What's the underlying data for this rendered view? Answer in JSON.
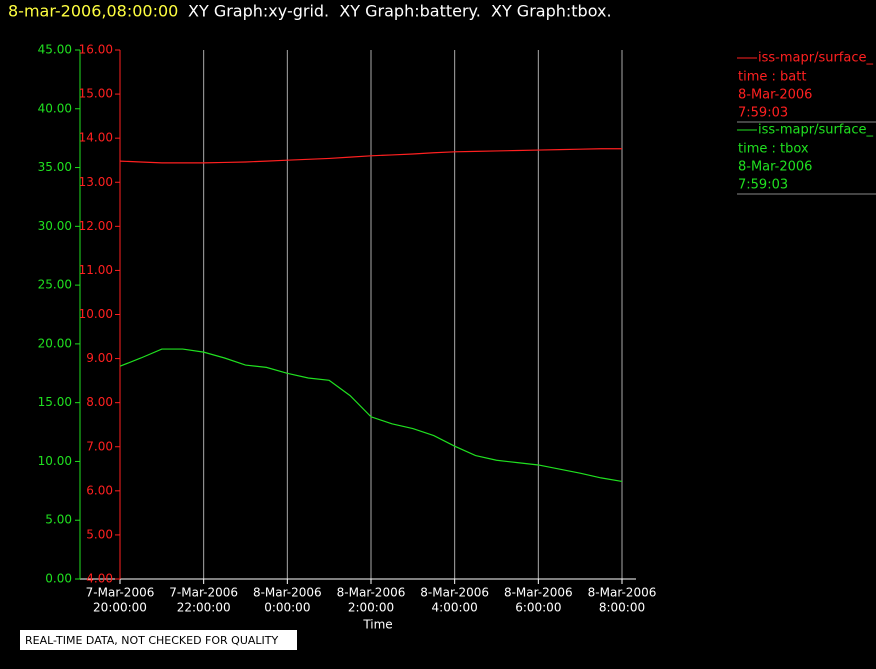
{
  "header": {
    "timestamp": "8-mar-2006,08:00:00",
    "graphs": "XY Graph:xy-grid.  XY Graph:battery.  XY Graph:tbox."
  },
  "footer_note": "REAL-TIME DATA, NOT CHECKED FOR QUALITY",
  "chart_data": {
    "type": "line",
    "xlabel": "Time",
    "grid": true,
    "x": [
      "2006-03-07T20:00",
      "2006-03-07T20:30",
      "2006-03-07T21:00",
      "2006-03-07T21:30",
      "2006-03-07T22:00",
      "2006-03-07T22:30",
      "2006-03-07T23:00",
      "2006-03-07T23:30",
      "2006-03-08T00:00",
      "2006-03-08T00:30",
      "2006-03-08T01:00",
      "2006-03-08T01:30",
      "2006-03-08T02:00",
      "2006-03-08T02:30",
      "2006-03-08T03:00",
      "2006-03-08T03:30",
      "2006-03-08T04:00",
      "2006-03-08T04:30",
      "2006-03-08T05:00",
      "2006-03-08T05:30",
      "2006-03-08T06:00",
      "2006-03-08T06:30",
      "2006-03-08T07:00",
      "2006-03-08T07:30",
      "2006-03-08T08:00"
    ],
    "xlim": [
      "2006-03-07T20:00",
      "2006-03-08T08:00"
    ],
    "xticks": [
      {
        "value": "2006-03-07T20:00",
        "label": [
          "7-Mar-2006",
          "20:00:00"
        ]
      },
      {
        "value": "2006-03-07T22:00",
        "label": [
          "7-Mar-2006",
          "22:00:00"
        ]
      },
      {
        "value": "2006-03-08T00:00",
        "label": [
          "8-Mar-2006",
          "0:00:00"
        ]
      },
      {
        "value": "2006-03-08T02:00",
        "label": [
          "8-Mar-2006",
          "2:00:00"
        ]
      },
      {
        "value": "2006-03-08T04:00",
        "label": [
          "8-Mar-2006",
          "4:00:00"
        ]
      },
      {
        "value": "2006-03-08T06:00",
        "label": [
          "8-Mar-2006",
          "6:00:00"
        ]
      },
      {
        "value": "2006-03-08T08:00",
        "label": [
          "8-Mar-2006",
          "8:00:00"
        ]
      }
    ],
    "ylim": [
      0,
      45
    ],
    "yticks": [
      {
        "value": 0,
        "label": "0.00"
      },
      {
        "value": 5,
        "label": "5.00"
      },
      {
        "value": 10,
        "label": "10.00"
      },
      {
        "value": 15,
        "label": "15.00"
      },
      {
        "value": 20,
        "label": "20.00"
      },
      {
        "value": 25,
        "label": "25.00"
      },
      {
        "value": 30,
        "label": "30.00"
      },
      {
        "value": 35,
        "label": "35.00"
      },
      {
        "value": 40,
        "label": "40.00"
      },
      {
        "value": 45,
        "label": "45.00"
      }
    ],
    "y2lim": [
      4,
      16
    ],
    "y2ticks": [
      {
        "value": 4,
        "label": "4.00"
      },
      {
        "value": 5,
        "label": "5.00"
      },
      {
        "value": 6,
        "label": "6.00"
      },
      {
        "value": 7,
        "label": "7.00"
      },
      {
        "value": 8,
        "label": "8.00"
      },
      {
        "value": 9,
        "label": "9.00"
      },
      {
        "value": 10,
        "label": "10.00"
      },
      {
        "value": 11,
        "label": "11.00"
      },
      {
        "value": 12,
        "label": "12.00"
      },
      {
        "value": 13,
        "label": "13.00"
      },
      {
        "value": 14,
        "label": "14.00"
      },
      {
        "value": 15,
        "label": "15.00"
      },
      {
        "value": 16,
        "label": "16.00"
      }
    ],
    "series": [
      {
        "name": "iss-mapr/surface_",
        "description": "time : batt",
        "date": "8-Mar-2006",
        "time": "7:59:03",
        "color": "#ff2020",
        "axis": "y2",
        "values": [
          13.48,
          13.46,
          13.44,
          13.44,
          13.44,
          13.45,
          13.46,
          13.48,
          13.5,
          13.52,
          13.54,
          13.57,
          13.6,
          13.62,
          13.64,
          13.67,
          13.69,
          13.7,
          13.71,
          13.72,
          13.73,
          13.74,
          13.75,
          13.76,
          13.76
        ]
      },
      {
        "name": "iss-mapr/surface_",
        "description": "time : tbox",
        "date": "8-Mar-2006",
        "time": "7:59:03",
        "color": "#20e020",
        "values": [
          18.1,
          18.8,
          19.56,
          19.56,
          19.3,
          18.8,
          18.2,
          18.0,
          17.5,
          17.1,
          16.9,
          15.6,
          13.8,
          13.2,
          12.8,
          12.2,
          11.3,
          10.5,
          10.1,
          9.9,
          9.7,
          9.35,
          9.0,
          8.6,
          8.3
        ]
      }
    ]
  }
}
